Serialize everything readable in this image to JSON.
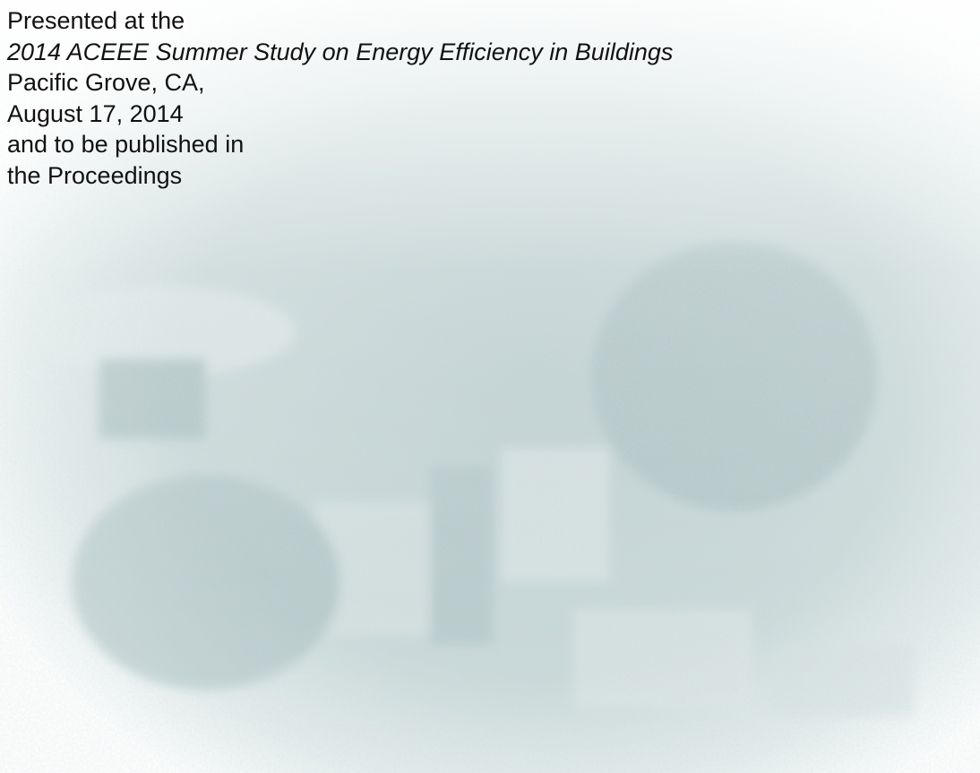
{
  "lines": [
    "Presented at the",
    "2014 ACEEE Summer Study on Energy Efficiency in Buildings",
    "Pacific Grove, CA,",
    "August 17, 2014",
    "and to be published in",
    "the Proceedings"
  ]
}
